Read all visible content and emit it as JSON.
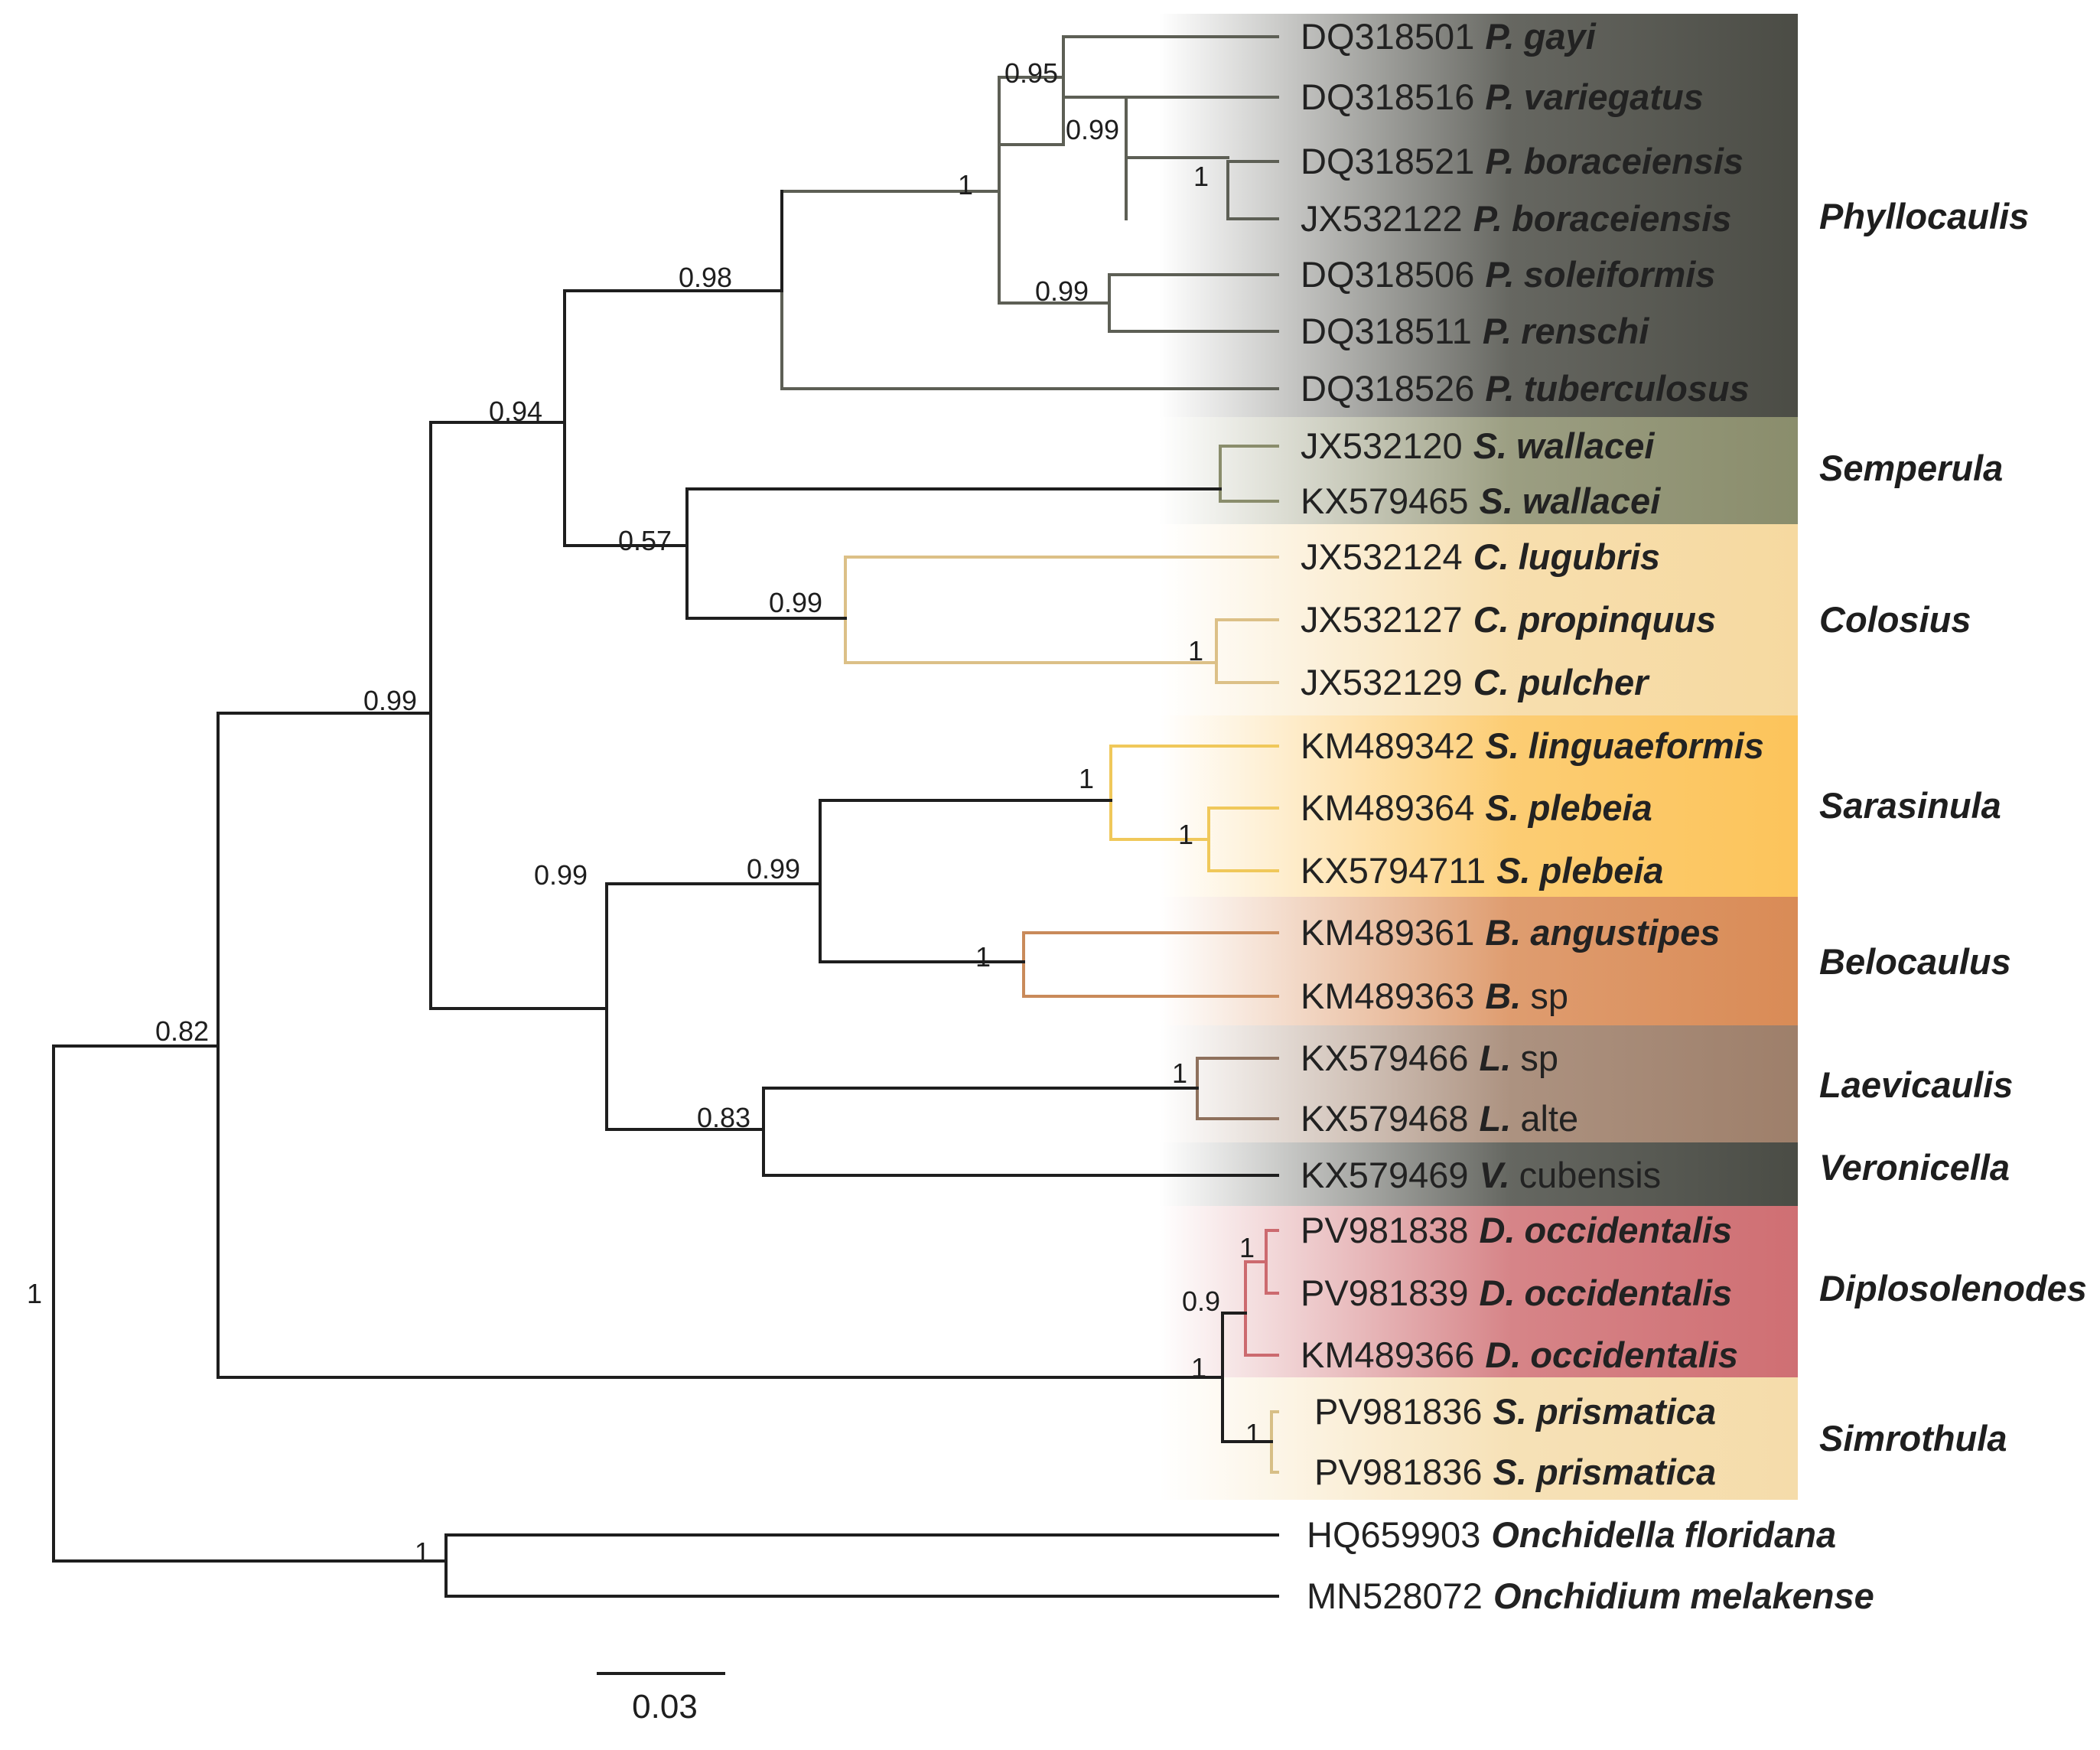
{
  "figure": {
    "type": "phylogenetic-tree",
    "scale_bar": {
      "label": "0.03",
      "length": 0.03
    }
  },
  "clades": [
    {
      "name": "Phyllocaulis",
      "color": "#4b4c45"
    },
    {
      "name": "Semperula",
      "color": "#8a8d6c"
    },
    {
      "name": "Colosius",
      "color": "#f6d9a0"
    },
    {
      "name": "Sarasinula",
      "color": "#fcc45b"
    },
    {
      "name": "Belocaulus",
      "color": "#d98b56"
    },
    {
      "name": "Laevicaulis",
      "color": "#9e7f6a"
    },
    {
      "name": "Veronicella",
      "color": "#4a4c45"
    },
    {
      "name": "Diplosolenodes",
      "color": "#cf6f73"
    },
    {
      "name": "Simrothula",
      "color": "#f5dcaa"
    }
  ],
  "tips": [
    {
      "accession": "DQ318501",
      "genus": "P.",
      "epithet": "gayi",
      "epithet_italic": true,
      "clade": "Phyllocaulis"
    },
    {
      "accession": "DQ318516",
      "genus": "P.",
      "epithet": "variegatus",
      "epithet_italic": true,
      "clade": "Phyllocaulis"
    },
    {
      "accession": "DQ318521",
      "genus": "P.",
      "epithet": "boraceiensis",
      "epithet_italic": true,
      "clade": "Phyllocaulis"
    },
    {
      "accession": "JX532122",
      "genus": "P.",
      "epithet": "boraceiensis",
      "epithet_italic": true,
      "clade": "Phyllocaulis"
    },
    {
      "accession": "DQ318506",
      "genus": "P.",
      "epithet": "soleiformis",
      "epithet_italic": true,
      "clade": "Phyllocaulis"
    },
    {
      "accession": "DQ318511",
      "genus": "P.",
      "epithet": "renschi",
      "epithet_italic": true,
      "clade": "Phyllocaulis"
    },
    {
      "accession": "DQ318526",
      "genus": "P.",
      "epithet": "tuberculosus",
      "epithet_italic": true,
      "clade": "Phyllocaulis"
    },
    {
      "accession": "JX532120",
      "genus": "S.",
      "epithet": "wallacei",
      "epithet_italic": true,
      "clade": "Semperula"
    },
    {
      "accession": "KX579465",
      "genus": "S.",
      "epithet": "wallacei",
      "epithet_italic": true,
      "clade": "Semperula"
    },
    {
      "accession": "JX532124",
      "genus": "C.",
      "epithet": "lugubris",
      "epithet_italic": true,
      "clade": "Colosius"
    },
    {
      "accession": "JX532127",
      "genus": "C.",
      "epithet": "propinquus",
      "epithet_italic": true,
      "clade": "Colosius"
    },
    {
      "accession": "JX532129",
      "genus": "C.",
      "epithet": "pulcher",
      "epithet_italic": true,
      "clade": "Colosius"
    },
    {
      "accession": "KM489342",
      "genus": "S.",
      "epithet": "linguaeformis",
      "epithet_italic": true,
      "clade": "Sarasinula"
    },
    {
      "accession": "KM489364",
      "genus": "S.",
      "epithet": "plebeia",
      "epithet_italic": true,
      "clade": "Sarasinula"
    },
    {
      "accession": "KX5794711",
      "genus": "S.",
      "epithet": "plebeia",
      "epithet_italic": true,
      "clade": "Sarasinula"
    },
    {
      "accession": "KM489361",
      "genus": "B.",
      "epithet": "angustipes",
      "epithet_italic": true,
      "clade": "Belocaulus"
    },
    {
      "accession": "KM489363",
      "genus": "B.",
      "epithet": "sp",
      "epithet_italic": false,
      "clade": "Belocaulus"
    },
    {
      "accession": "KX579466",
      "genus": "L.",
      "epithet": "sp",
      "epithet_italic": false,
      "clade": "Laevicaulis"
    },
    {
      "accession": "KX579468",
      "genus": "L.",
      "epithet": "alte",
      "epithet_italic": false,
      "clade": "Laevicaulis"
    },
    {
      "accession": "KX579469",
      "genus": "V.",
      "epithet": "cubensis",
      "epithet_italic": false,
      "clade": "Veronicella"
    },
    {
      "accession": "PV981838",
      "genus": "D.",
      "epithet": "occidentalis",
      "epithet_italic": true,
      "clade": "Diplosolenodes"
    },
    {
      "accession": "PV981839",
      "genus": "D.",
      "epithet": "occidentalis",
      "epithet_italic": true,
      "clade": "Diplosolenodes"
    },
    {
      "accession": "KM489366",
      "genus": "D.",
      "epithet": "occidentalis",
      "epithet_italic": true,
      "clade": "Diplosolenodes"
    },
    {
      "accession": "PV981836",
      "genus": "S.",
      "epithet": "prismatica",
      "epithet_italic": true,
      "clade": "Simrothula"
    },
    {
      "accession": "PV981836",
      "genus": "S.",
      "epithet": "prismatica",
      "epithet_italic": true,
      "clade": "Simrothula"
    },
    {
      "accession": "HQ659903",
      "genus": "Onchidella",
      "epithet": "floridana",
      "epithet_italic": true,
      "clade": ""
    },
    {
      "accession": "MN528072",
      "genus": "Onchidium",
      "epithet": "melakense",
      "epithet_italic": true,
      "clade": ""
    }
  ],
  "support_values": [
    {
      "node": "root",
      "value": "1"
    },
    {
      "node": "ingroup",
      "value": "0.82"
    },
    {
      "node": "veronicellidae-core",
      "value": "0.99"
    },
    {
      "node": "upper-group",
      "value": "0.94"
    },
    {
      "node": "phyllocaulis-stem",
      "value": "0.98"
    },
    {
      "node": "phyllocaulis-crown",
      "value": "1"
    },
    {
      "node": "gayi-variegatus-boraceiensis",
      "value": "0.95"
    },
    {
      "node": "variegatus-boraceiensis",
      "value": "0.99"
    },
    {
      "node": "boraceiensis",
      "value": "1"
    },
    {
      "node": "soleiformis-renschi",
      "value": "0.99"
    },
    {
      "node": "semperula-colosius",
      "value": "0.57"
    },
    {
      "node": "colosius",
      "value": "0.99"
    },
    {
      "node": "propinquus-pulcher",
      "value": "1"
    },
    {
      "node": "lower-group",
      "value": "0.99"
    },
    {
      "node": "sarasinula-belocaulus",
      "value": "0.99"
    },
    {
      "node": "sarasinula",
      "value": "1"
    },
    {
      "node": "plebeia",
      "value": "1"
    },
    {
      "node": "belocaulus",
      "value": "1"
    },
    {
      "node": "laevicaulis-veronicella",
      "value": "0.83"
    },
    {
      "node": "laevicaulis",
      "value": "1"
    },
    {
      "node": "diplosolenodes-simrothula",
      "value": "1"
    },
    {
      "node": "diplosolenodes",
      "value": "0.9"
    },
    {
      "node": "diplosolenodes-pv",
      "value": "1"
    },
    {
      "node": "simrothula",
      "value": "1"
    },
    {
      "node": "outgroup",
      "value": "1"
    }
  ]
}
